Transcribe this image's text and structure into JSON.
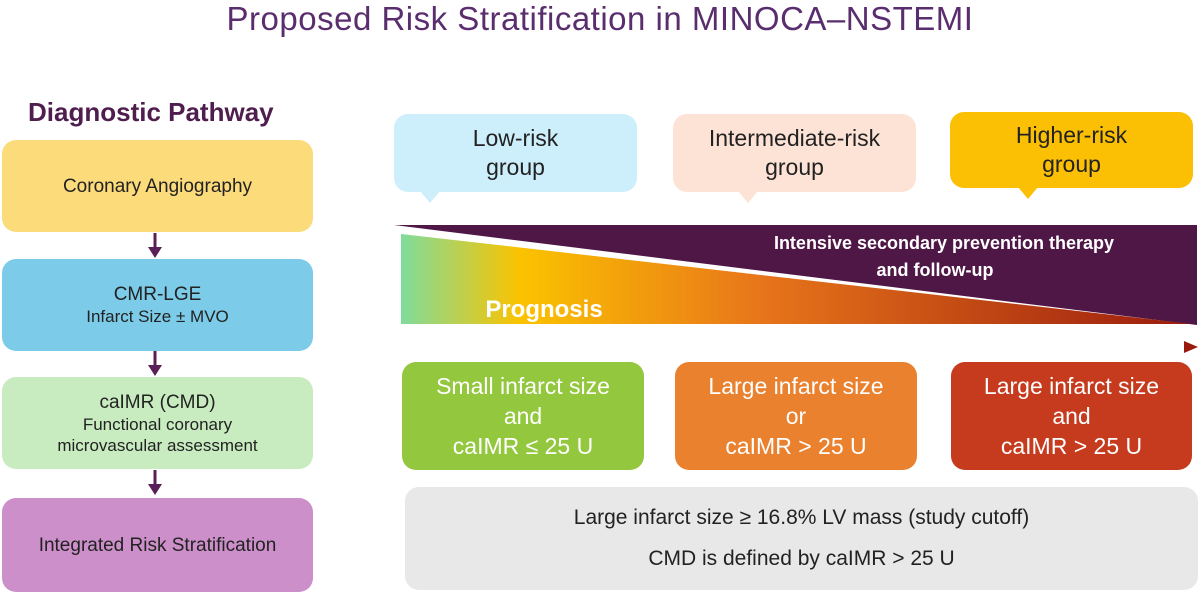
{
  "title": "Proposed Risk Stratification in MINOCA–NSTEMI",
  "pathway": {
    "heading": "Diagnostic Pathway",
    "steps": [
      {
        "label": "Coronary Angiography",
        "sub": "",
        "color": "#fcdb7b"
      },
      {
        "label": "CMR-LGE",
        "sub": "Infarct Size ± MVO",
        "color": "#7ccbe8"
      },
      {
        "label": "caIMR (CMD)",
        "sub": "Functional coronary microvascular assessment",
        "color": "#c8ecc0"
      },
      {
        "label": "Integrated Risk Stratification",
        "sub": "",
        "color": "#cc8fc9"
      }
    ],
    "arrow_color": "#5a1f56"
  },
  "risk_groups": [
    {
      "line1": "Low-risk",
      "line2": "group",
      "color": "#cdeefb"
    },
    {
      "line1": "Intermediate-risk",
      "line2": "group",
      "color": "#fde3d5"
    },
    {
      "line1": "Higher-risk",
      "line2": "group",
      "color": "#fbc004"
    }
  ],
  "therapy": {
    "line1": "Intensive secondary prevention therapy",
    "line2": "and follow-up",
    "color": "#4e1746"
  },
  "prognosis": {
    "label": "Prognosis",
    "gradient": [
      "#7fdc9c",
      "#fbc300",
      "#e8761a",
      "#9a1b0e"
    ]
  },
  "outcomes": [
    {
      "line1": "Small infarct size",
      "line2": "and",
      "line3": "caIMR ≤ 25 U",
      "color": "#93c73d"
    },
    {
      "line1": "Large infarct size",
      "line2": "or",
      "line3": "caIMR > 25 U",
      "color": "#e9812f"
    },
    {
      "line1": "Large infarct size",
      "line2": "and",
      "line3": "caIMR > 25 U",
      "color": "#c63a1e"
    }
  ],
  "notes": {
    "line1": "Large infarct size ≥ 16.8% LV mass (study cutoff)",
    "line2": "CMD is defined by caIMR > 25 U"
  }
}
